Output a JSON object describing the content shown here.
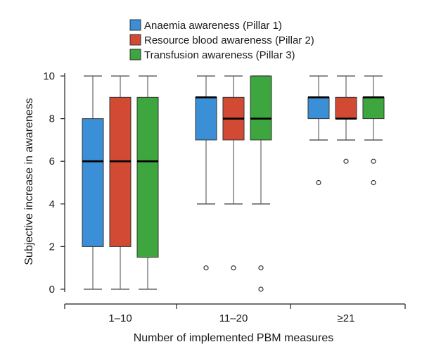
{
  "chart_data": {
    "type": "box",
    "xlabel": "Number of implemented PBM measures",
    "ylabel": "Subjective increase in awareness",
    "ylim": [
      0,
      10
    ],
    "yticks": [
      0,
      2,
      4,
      6,
      8,
      10
    ],
    "categories": [
      "1–10",
      "11–20",
      "≥21"
    ],
    "legend_position": "top-center",
    "series": [
      {
        "name": "Anaemia awareness (Pillar 1)",
        "color": "#3a8fd6",
        "boxes": [
          {
            "whisker_low": 0,
            "q1": 2,
            "median": 6,
            "q3": 8,
            "whisker_high": 10,
            "outliers": []
          },
          {
            "whisker_low": 4,
            "q1": 7,
            "median": 9,
            "q3": 9,
            "whisker_high": 10,
            "outliers": [
              1
            ]
          },
          {
            "whisker_low": 7,
            "q1": 8,
            "median": 9,
            "q3": 9,
            "whisker_high": 10,
            "outliers": [
              5
            ]
          }
        ]
      },
      {
        "name": "Resource blood awareness (Pillar 2)",
        "color": "#d24a33",
        "boxes": [
          {
            "whisker_low": 0,
            "q1": 2,
            "median": 6,
            "q3": 9,
            "whisker_high": 10,
            "outliers": []
          },
          {
            "whisker_low": 4,
            "q1": 7,
            "median": 8,
            "q3": 9,
            "whisker_high": 10,
            "outliers": [
              1
            ]
          },
          {
            "whisker_low": 7,
            "q1": 8,
            "median": 8,
            "q3": 9,
            "whisker_high": 10,
            "outliers": [
              6
            ]
          }
        ]
      },
      {
        "name": "Transfusion awareness (Pillar 3)",
        "color": "#3ea63e",
        "boxes": [
          {
            "whisker_low": 0,
            "q1": 1.5,
            "median": 6,
            "q3": 9,
            "whisker_high": 10,
            "outliers": []
          },
          {
            "whisker_low": 4,
            "q1": 7,
            "median": 8,
            "q3": 10,
            "whisker_high": 10,
            "outliers": [
              1,
              0
            ]
          },
          {
            "whisker_low": 7,
            "q1": 8,
            "median": 9,
            "q3": 9,
            "whisker_high": 10,
            "outliers": [
              6,
              5
            ]
          }
        ]
      }
    ]
  }
}
